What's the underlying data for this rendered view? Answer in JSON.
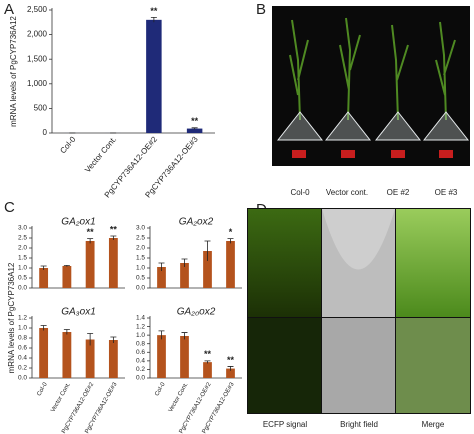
{
  "panels": [
    "A",
    "B",
    "C",
    "D"
  ],
  "panel_c": {
    "ylabel": "mRNA levels of PgCYP736A12"
  },
  "photo_b": {
    "labels": [
      "Col-0",
      "Vector cont.",
      "OE #2",
      "OE #3"
    ]
  },
  "photo_d": {
    "labels": [
      "ECFP signal",
      "Bright field",
      "Merge"
    ]
  },
  "chart_data": [
    {
      "type": "bar",
      "ylabel": "mRNA levels of PgCYP736A12",
      "color": "#1f2a78",
      "categories": [
        "Col-0",
        "Vector Cont.",
        "PgCYP736A12-OE#2",
        "PgCYP736A12-OE#3"
      ],
      "values": [
        1,
        1,
        2300,
        90
      ],
      "errors": [
        0,
        0,
        50,
        15
      ],
      "annotations": [
        {
          "index": 2,
          "text": "**"
        },
        {
          "index": 3,
          "text": "**"
        }
      ],
      "ylim": [
        0,
        2500
      ],
      "yticks": [
        0,
        500,
        {
          "value": 1000,
          "label": "1,000"
        },
        {
          "value": 1500,
          "label": "1,500"
        },
        {
          "value": 2000,
          "label": "2,000"
        },
        {
          "value": 2500,
          "label": "2,500"
        }
      ]
    },
    {
      "type": "bar",
      "title": "GA₂ox1",
      "color": "#b4531d",
      "values": [
        1.0,
        1.1,
        2.35,
        2.5
      ],
      "errors": [
        0.1,
        0.03,
        0.12,
        0.1
      ],
      "annotations": [
        {
          "index": 2,
          "text": "**"
        },
        {
          "index": 3,
          "text": "**"
        }
      ],
      "ylim": [
        0,
        3
      ],
      "yticks": [
        {
          "value": 0,
          "label": "0.0"
        },
        0.5,
        {
          "value": 1,
          "label": "1.0"
        },
        1.5,
        {
          "value": 2,
          "label": "2.0"
        },
        2.5,
        {
          "value": 3,
          "label": "3.0"
        }
      ]
    },
    {
      "type": "bar",
      "title": "GA₂ox2",
      "color": "#b4531d",
      "values": [
        1.05,
        1.25,
        1.85,
        2.35
      ],
      "errors": [
        0.2,
        0.2,
        0.5,
        0.12
      ],
      "annotations": [
        {
          "index": 3,
          "text": "*"
        }
      ],
      "ylim": [
        0,
        3
      ],
      "yticks": [
        {
          "value": 0,
          "label": "0.0"
        },
        0.5,
        {
          "value": 1,
          "label": "1.0"
        },
        1.5,
        {
          "value": 2,
          "label": "2.0"
        },
        2.5,
        {
          "value": 3,
          "label": "3.0"
        }
      ]
    },
    {
      "type": "bar",
      "title": "GA₃ox1",
      "color": "#b4531d",
      "categories": [
        "Col-0",
        "Vector Cont.",
        "PgCYP736A12-OE#2",
        "PgCYP736A12-OE#3"
      ],
      "values": [
        1.0,
        0.92,
        0.77,
        0.76
      ],
      "errors": [
        0.05,
        0.05,
        0.12,
        0.06
      ],
      "ylim": [
        0,
        1.2
      ],
      "yticks": [
        {
          "value": 0,
          "label": "0.0"
        },
        0.2,
        0.4,
        0.6,
        0.8,
        {
          "value": 1,
          "label": "1.0"
        },
        1.2
      ]
    },
    {
      "type": "bar",
      "title": "GA₂₀ox2",
      "color": "#b4531d",
      "categories": [
        "Col-0",
        "Vector Cont.",
        "PgCYP736A12-OE#2",
        "PgCYP736A12-OE#3"
      ],
      "values": [
        1.0,
        0.98,
        0.37,
        0.22
      ],
      "errors": [
        0.1,
        0.08,
        0.03,
        0.05
      ],
      "annotations": [
        {
          "index": 2,
          "text": "**"
        },
        {
          "index": 3,
          "text": "**"
        }
      ],
      "ylim": [
        0,
        1.4
      ],
      "yticks": [
        {
          "value": 0,
          "label": "0.0"
        },
        0.2,
        0.4,
        0.6,
        0.8,
        {
          "value": 1,
          "label": "1.0"
        },
        1.2,
        1.4
      ]
    }
  ]
}
